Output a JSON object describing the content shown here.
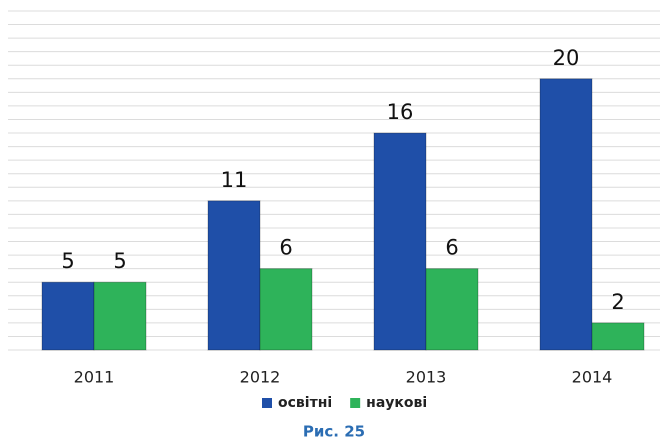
{
  "chart_data": {
    "type": "bar",
    "categories": [
      "2011",
      "2012",
      "2013",
      "2014"
    ],
    "series": [
      {
        "name": "освітні",
        "color": "#1f4fa8",
        "values": [
          5,
          11,
          16,
          20
        ]
      },
      {
        "name": "наукові",
        "color": "#2eb35a",
        "values": [
          5,
          6,
          6,
          2
        ]
      }
    ],
    "ylim": [
      0,
      25
    ],
    "yticks": [
      0,
      1,
      2,
      3,
      4,
      5,
      6,
      7,
      8,
      9,
      10,
      11,
      12,
      13,
      14,
      15,
      16,
      17,
      18,
      19,
      20,
      21,
      22,
      23,
      24,
      25
    ],
    "grid": true,
    "legend": "bottom",
    "caption": "Рис. 25"
  }
}
